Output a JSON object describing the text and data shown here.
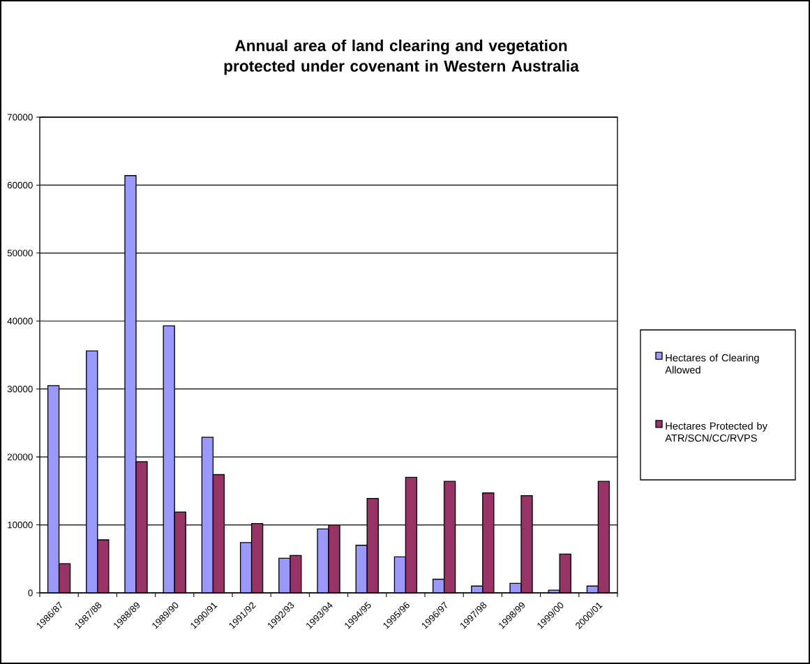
{
  "chart_data": {
    "type": "bar",
    "title": "Annual area of land clearing and vegetation protected under covenant in Western Australia",
    "categories": [
      "1986/87",
      "1987/88",
      "1988/89",
      "1989/90",
      "1990/91",
      "1991/92",
      "1992/93",
      "1993/94",
      "1994/95",
      "1995/96",
      "1996/97",
      "1997/98",
      "1998/99",
      "1999/00",
      "2000/01"
    ],
    "series": [
      {
        "name": "Hectares of Clearing Allowed",
        "color": "#9999ff",
        "values": [
          30500,
          35600,
          61400,
          39300,
          22900,
          7400,
          5100,
          9400,
          7000,
          5300,
          2000,
          1000,
          1400,
          400,
          1000
        ]
      },
      {
        "name": "Hectares Protected by ATR/SCN/CC/RVPS",
        "color": "#993366",
        "values": [
          4300,
          7800,
          19300,
          11900,
          17400,
          10200,
          5500,
          10000,
          13900,
          17000,
          16400,
          14700,
          14300,
          5700,
          16400
        ]
      }
    ],
    "ylim": [
      0,
      70000
    ],
    "yticks": [
      0,
      10000,
      20000,
      30000,
      40000,
      50000,
      60000,
      70000
    ],
    "grid": "y",
    "legend": "right"
  }
}
